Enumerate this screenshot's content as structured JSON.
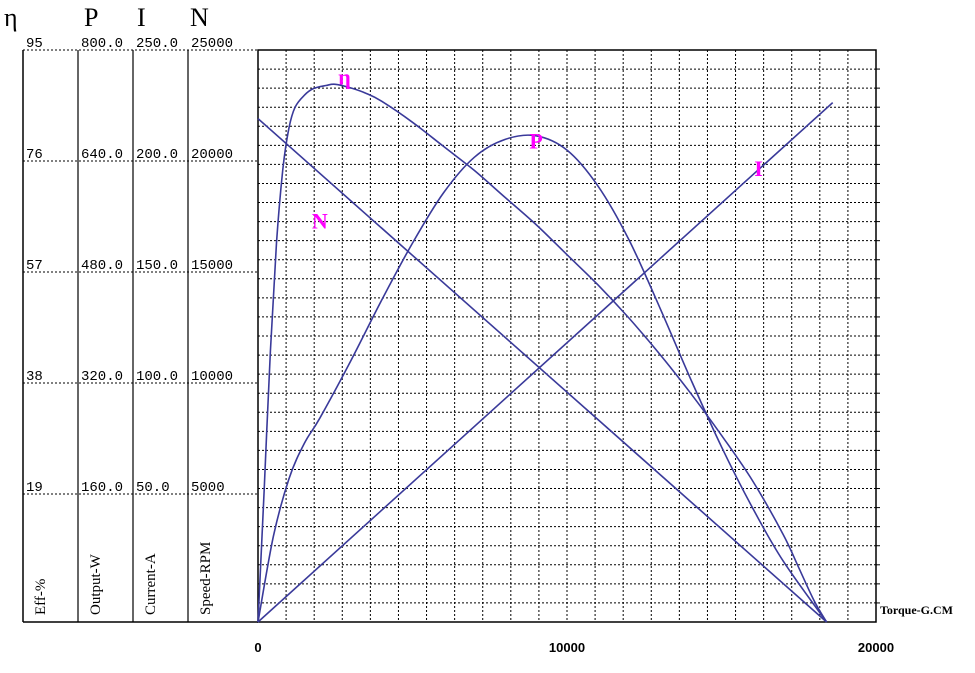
{
  "chart_data": {
    "type": "line",
    "axes": [
      {
        "symbol": "η",
        "unit": "Eff-%",
        "ticks": [
          "95",
          "76",
          "57",
          "38",
          "19"
        ],
        "max": 95
      },
      {
        "symbol": "P",
        "unit": "Output-W",
        "ticks": [
          "800.0",
          "640.0",
          "480.0",
          "320.0",
          "160.0"
        ],
        "max": 800
      },
      {
        "symbol": "I",
        "unit": "Current-A",
        "ticks": [
          "250.0",
          "200.0",
          "150.0",
          "100.0",
          "50.0"
        ],
        "max": 250
      },
      {
        "symbol": "N",
        "unit": "Speed-RPM",
        "ticks": [
          "25000",
          "20000",
          "15000",
          "10000",
          "5000"
        ],
        "max": 25000
      }
    ],
    "xlabel": "Torque-G.CM",
    "xticks": [
      "0",
      "10000",
      "20000"
    ],
    "xlim": [
      0,
      20000
    ],
    "grid": true,
    "series": [
      {
        "name": "η",
        "axis": 0,
        "color": "#3a3a9a",
        "x": [
          0,
          200,
          400,
          600,
          800,
          1000,
          1200,
          1500,
          1800,
          2200,
          2500,
          3000,
          3500,
          4000,
          5000,
          6000,
          7000,
          8000,
          9000,
          10000,
          11000,
          12000,
          13000,
          14000,
          15000,
          16000,
          17000,
          17500,
          18000,
          18400
        ],
        "y": [
          0,
          22,
          45,
          63,
          75,
          82,
          85.5,
          87.5,
          88.6,
          89.1,
          89.3,
          88.7,
          87.8,
          86.5,
          83,
          79,
          75,
          70.5,
          66,
          61,
          56,
          50.5,
          44.5,
          38,
          31,
          23.5,
          14.5,
          9,
          3.5,
          0
        ]
      },
      {
        "name": "P",
        "axis": 1,
        "color": "#3a3a9a",
        "x": [
          0,
          500,
          1000,
          1500,
          2000,
          3000,
          4000,
          5000,
          6000,
          7000,
          8000,
          9000,
          10000,
          11000,
          12000,
          13000,
          14000,
          15000,
          16000,
          17000,
          18400
        ],
        "y": [
          0,
          120,
          200,
          250,
          285,
          365,
          450,
          530,
          600,
          650,
          675,
          680,
          660,
          610,
          535,
          440,
          340,
          245,
          160,
          85,
          0
        ]
      },
      {
        "name": "I",
        "axis": 2,
        "color": "#3a3a9a",
        "x": [
          0,
          18600
        ],
        "y": [
          0,
          227
        ]
      },
      {
        "name": "N",
        "axis": 3,
        "color": "#3a3a9a",
        "x": [
          0,
          18400
        ],
        "y": [
          22000,
          0
        ]
      }
    ],
    "curve_labels": [
      {
        "text": "η",
        "x": 2800,
        "y": 23500
      },
      {
        "text": "P",
        "x": 9000,
        "y": 20700
      },
      {
        "text": "I",
        "x": 16200,
        "y": 19500
      },
      {
        "text": "N",
        "x": 2000,
        "y": 17200
      }
    ]
  }
}
